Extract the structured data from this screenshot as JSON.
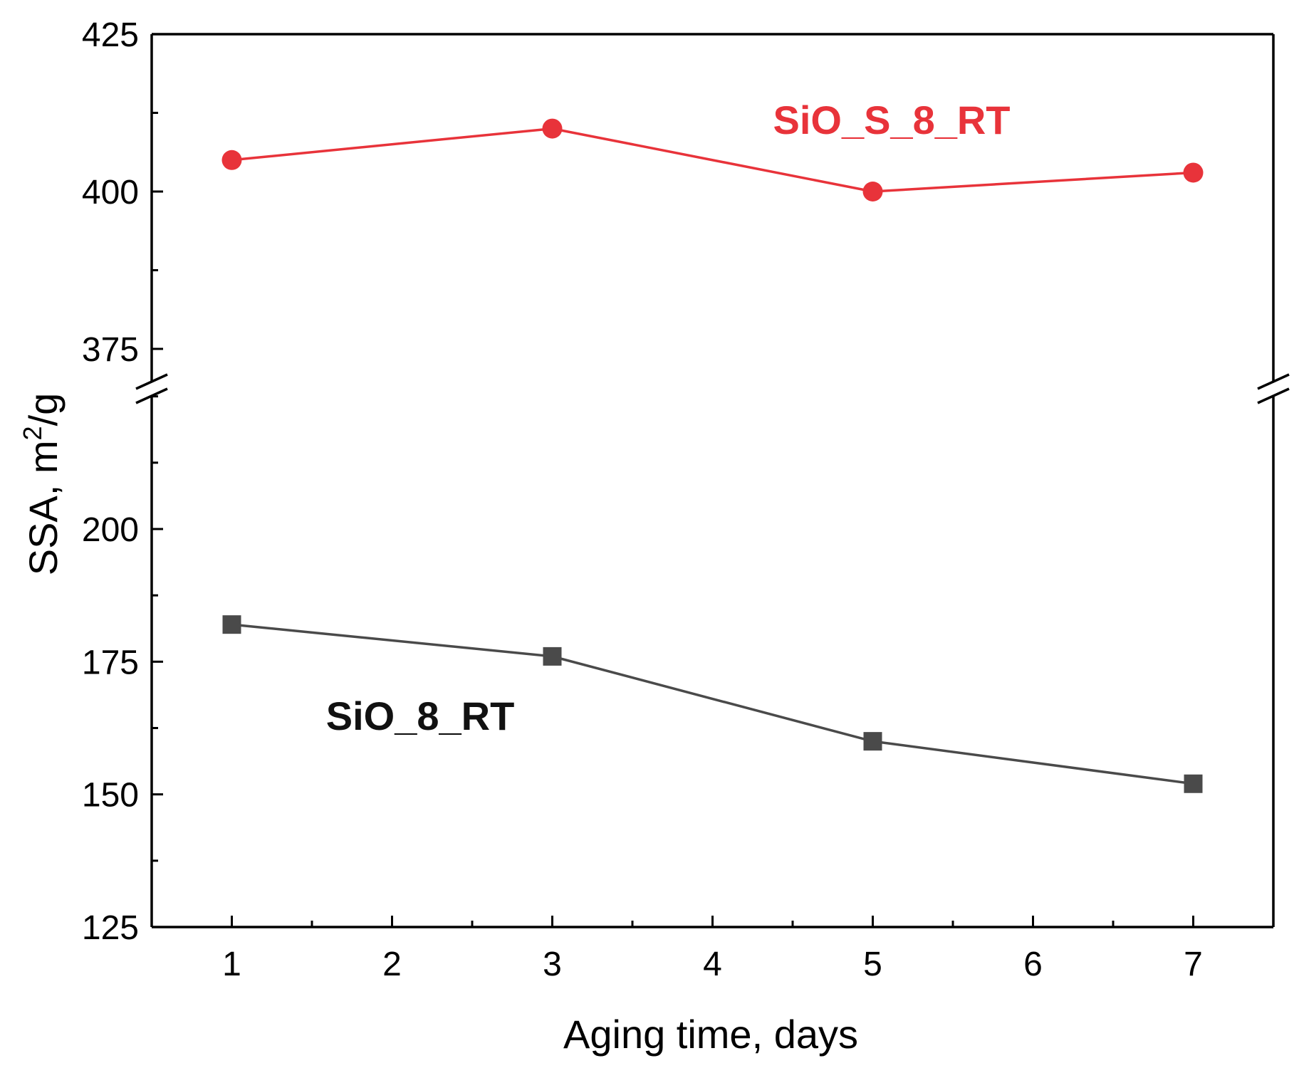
{
  "chart_data": {
    "type": "line",
    "title": "",
    "xlabel": "Aging time, days",
    "ylabel_main": "SSA, m",
    "ylabel_sup": "2",
    "ylabel_tail": "/g",
    "ylabel": "SSA, m2/g",
    "x_ticks": [
      "1",
      "2",
      "3",
      "4",
      "5",
      "6",
      "7"
    ],
    "xlim": [
      0.5,
      7.5
    ],
    "y_axis_break": true,
    "y_upper_segment": {
      "ylim": [
        370,
        425
      ],
      "ticks": [
        375,
        400,
        425
      ]
    },
    "y_lower_segment": {
      "ylim": [
        125,
        225
      ],
      "ticks": [
        125,
        150,
        175,
        200
      ]
    },
    "series": [
      {
        "name": "SiO_S_8_RT",
        "color": "#e8333a",
        "marker": "circle",
        "x": [
          1,
          3,
          5,
          7
        ],
        "y": [
          405,
          410,
          400,
          403
        ]
      },
      {
        "name": "SiO_8_RT",
        "color": "#4a4a4a",
        "marker": "square",
        "x": [
          1,
          3,
          5,
          7
        ],
        "y": [
          182,
          176,
          160,
          152
        ]
      }
    ]
  }
}
